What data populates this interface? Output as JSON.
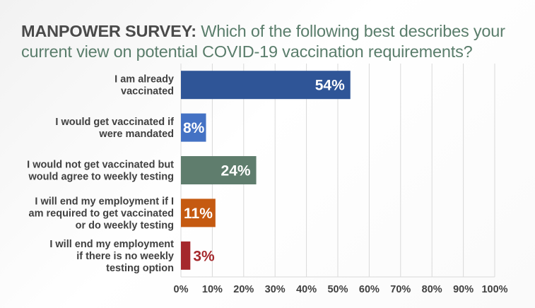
{
  "title": {
    "lead": "MANPOWER SURVEY:",
    "question": " Which of the following best describes your current view on potential COVID-19 vaccination requirements?"
  },
  "chart_data": {
    "type": "bar",
    "orientation": "horizontal",
    "categories": [
      [
        "I am already",
        "vaccinated"
      ],
      [
        "I would get vaccinated if",
        "were mandated"
      ],
      [
        "I would not get vaccinated but",
        "would agree to weekly testing"
      ],
      [
        "I will end my employment if I",
        "am required to get vaccinated",
        "or do weekly testing"
      ],
      [
        "I will end my employment",
        "if there is no weekly",
        "testing option"
      ]
    ],
    "values": [
      54,
      8,
      24,
      11,
      3
    ],
    "data_labels": [
      "54%",
      "8%",
      "24%",
      "11%",
      "3%"
    ],
    "colors": [
      "#2f5597",
      "#4472c4",
      "#5f7d6d",
      "#c55a11",
      "#a5282c"
    ],
    "label_inside": [
      true,
      false,
      true,
      false,
      false
    ],
    "xlim": [
      0,
      100
    ],
    "xticks": [
      "0%",
      "10%",
      "20%",
      "30%",
      "40%",
      "50%",
      "60%",
      "70%",
      "80%",
      "90%",
      "100%"
    ],
    "grid": true
  }
}
